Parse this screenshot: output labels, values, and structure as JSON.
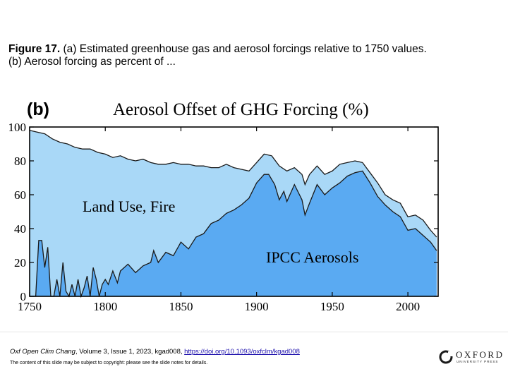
{
  "caption": {
    "figure_label": "Figure 17.",
    "line1": " (a) Estimated greenhouse gas and aerosol forcings relative to 1750 values.",
    "line2": "(b) Aerosol forcing as percent of ..."
  },
  "chart_data": {
    "type": "area",
    "panel_label": "(b)",
    "title": "Aerosol Offset of GHG Forcing (%)",
    "xlabel": "",
    "ylabel": "",
    "xlim": [
      1750,
      2020
    ],
    "ylim": [
      0,
      100
    ],
    "x_ticks": [
      1750,
      1800,
      1850,
      1900,
      1950,
      2000
    ],
    "y_ticks": [
      0,
      20,
      40,
      60,
      80,
      100
    ],
    "annotations": [
      "Land Use, Fire",
      "IPCC Aerosols"
    ],
    "colors": {
      "land_use_fire": "#a9d8f7",
      "ipcc_aerosols": "#5aaaf2",
      "line": "#1a1a1a"
    },
    "series": [
      {
        "name": "Land Use, Fire (total)",
        "x": [
          1750,
          1755,
          1760,
          1765,
          1770,
          1775,
          1780,
          1785,
          1790,
          1795,
          1800,
          1805,
          1810,
          1815,
          1820,
          1825,
          1830,
          1835,
          1840,
          1845,
          1850,
          1855,
          1860,
          1865,
          1870,
          1875,
          1880,
          1885,
          1890,
          1895,
          1900,
          1905,
          1910,
          1915,
          1920,
          1925,
          1930,
          1932,
          1935,
          1940,
          1945,
          1950,
          1955,
          1960,
          1965,
          1970,
          1975,
          1980,
          1985,
          1990,
          1995,
          2000,
          2005,
          2010,
          2015,
          2019
        ],
        "values": [
          98,
          97,
          96,
          93,
          91,
          90,
          88,
          87,
          87,
          85,
          84,
          82,
          83,
          81,
          80,
          81,
          79,
          78,
          78,
          79,
          78,
          78,
          77,
          77,
          76,
          76,
          78,
          76,
          75,
          74,
          79,
          84,
          83,
          77,
          74,
          76,
          72,
          66,
          72,
          77,
          72,
          74,
          78,
          79,
          80,
          79,
          73,
          67,
          60,
          57,
          55,
          47,
          48,
          45,
          39,
          35
        ]
      },
      {
        "name": "IPCC Aerosols",
        "x": [
          1750,
          1752,
          1754,
          1756,
          1758,
          1760,
          1762,
          1764,
          1766,
          1768,
          1770,
          1772,
          1774,
          1776,
          1778,
          1780,
          1782,
          1784,
          1786,
          1788,
          1790,
          1792,
          1794,
          1796,
          1798,
          1800,
          1802,
          1805,
          1808,
          1810,
          1815,
          1820,
          1825,
          1830,
          1832,
          1835,
          1840,
          1845,
          1850,
          1855,
          1860,
          1865,
          1870,
          1875,
          1880,
          1885,
          1890,
          1895,
          1900,
          1905,
          1908,
          1912,
          1915,
          1918,
          1920,
          1925,
          1930,
          1932,
          1935,
          1940,
          1945,
          1950,
          1955,
          1960,
          1965,
          1970,
          1975,
          1980,
          1985,
          1990,
          1995,
          2000,
          2005,
          2010,
          2015,
          2019
        ],
        "values": [
          0,
          0,
          0,
          33,
          33,
          17,
          29,
          0,
          0,
          10,
          0,
          20,
          3,
          0,
          7,
          0,
          10,
          0,
          5,
          12,
          0,
          17,
          10,
          0,
          7,
          10,
          7,
          15,
          8,
          15,
          19,
          14,
          18,
          20,
          27,
          20,
          26,
          24,
          32,
          28,
          35,
          37,
          43,
          45,
          49,
          51,
          54,
          58,
          67,
          72,
          72,
          66,
          57,
          62,
          56,
          66,
          57,
          48,
          55,
          66,
          60,
          64,
          67,
          71,
          73,
          74,
          67,
          59,
          54,
          50,
          47,
          39,
          40,
          36,
          32,
          27
        ]
      }
    ]
  },
  "footer": {
    "journal": "Oxf Open Clim Chang",
    "details": ", Volume 3, Issue 1, 2023, kgad008, ",
    "doi": "https://doi.org/10.1093/oxfclm/kgad008",
    "copyright_note": "The content of this slide may be subject to copyright: please see the slide notes for details.",
    "logo_text": "OXFORD",
    "logo_subtext": "UNIVERSITY PRESS"
  }
}
